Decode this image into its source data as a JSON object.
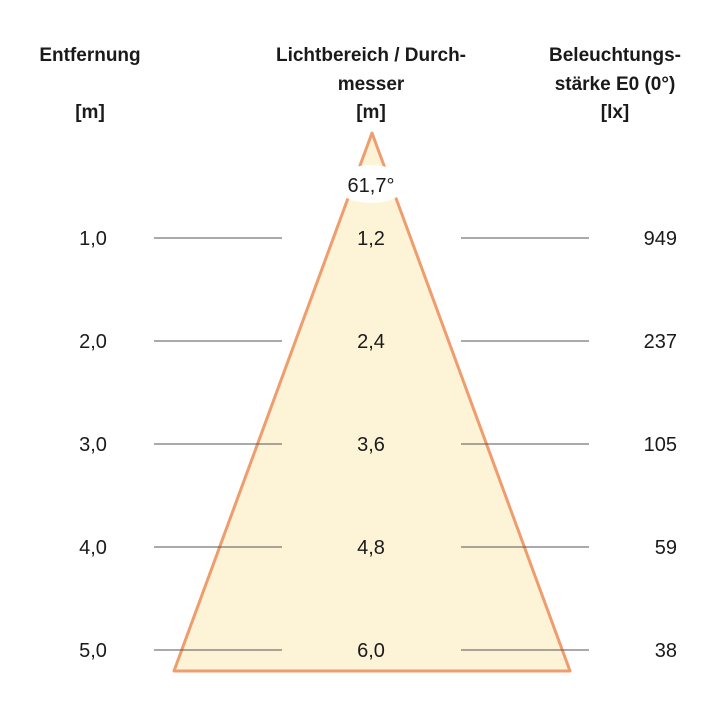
{
  "headers": {
    "distance": {
      "line1": "Entfernung",
      "unit": "[m]"
    },
    "diameter": {
      "line1": "Lichtbereich / Durch-",
      "line2": "messer",
      "unit": "[m]"
    },
    "illuminance": {
      "line1": "Beleuchtungs-",
      "line2": "stärke E0 (0°)",
      "unit": "[lx]"
    }
  },
  "beam_angle": "61,7°",
  "rows": [
    {
      "distance": "1,0",
      "diameter": "1,2",
      "illuminance": "949"
    },
    {
      "distance": "2,0",
      "diameter": "2,4",
      "illuminance": "237"
    },
    {
      "distance": "3,0",
      "diameter": "3,6",
      "illuminance": "105"
    },
    {
      "distance": "4,0",
      "diameter": "4,8",
      "illuminance": "59"
    },
    {
      "distance": "5,0",
      "diameter": "6,0",
      "illuminance": "38"
    }
  ],
  "colors": {
    "cone_fill": "#fdf3d6",
    "cone_edge": "#ef9d6e",
    "rule_line": "#555555"
  }
}
